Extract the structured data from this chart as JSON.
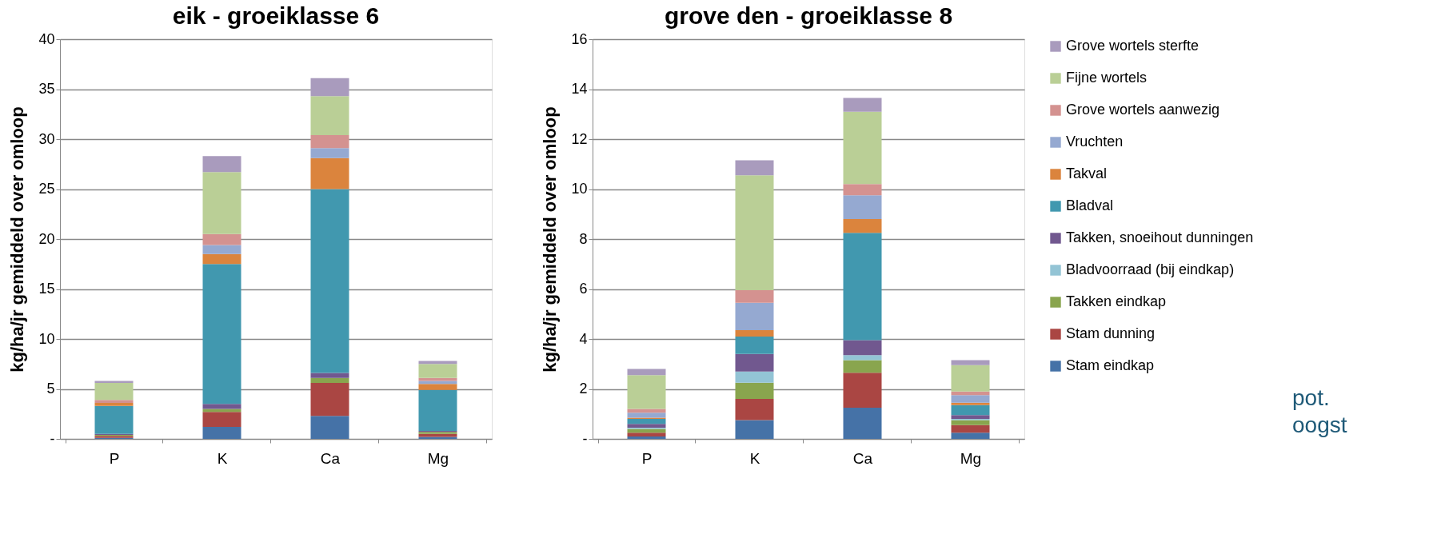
{
  "chart_data": [
    {
      "type": "bar",
      "title": "eik - groeiklasse 6",
      "ylabel": "kg/ha/jr   gemiddeld over omloop",
      "categories": [
        "P",
        "K",
        "Ca",
        "Mg"
      ],
      "stacked": true,
      "ylim": [
        0,
        40
      ],
      "yticks": [
        {
          "value": 0,
          "label": "-"
        },
        5,
        10,
        15,
        20,
        25,
        30,
        35,
        40
      ],
      "grid": "y",
      "series": [
        {
          "color": "#4572a7",
          "values": [
            0.1,
            1.2,
            2.3,
            0.2
          ]
        },
        {
          "color": "#aa4643",
          "values": [
            0.2,
            1.5,
            3.3,
            0.3
          ]
        },
        {
          "color": "#89a54e",
          "values": [
            0.1,
            0.3,
            0.5,
            0.2
          ]
        },
        {
          "color": "#93c4d5",
          "values": [
            0,
            0,
            0,
            0
          ]
        },
        {
          "color": "#71588f",
          "values": [
            0.1,
            0.5,
            0.5,
            0.1
          ]
        },
        {
          "color": "#4198af",
          "values": [
            2.8,
            14.0,
            18.4,
            4.1
          ]
        },
        {
          "color": "#db843d",
          "values": [
            0.3,
            1.0,
            3.1,
            0.6
          ]
        },
        {
          "color": "#95a9d1",
          "values": [
            0,
            0.9,
            1.0,
            0.3
          ]
        },
        {
          "color": "#d49290",
          "values": [
            0.3,
            1.1,
            1.3,
            0.3
          ]
        },
        {
          "color": "#bacf96",
          "values": [
            1.7,
            6.2,
            3.9,
            1.4
          ]
        },
        {
          "color": "#a99bbd",
          "values": [
            0.2,
            1.6,
            1.8,
            0.3
          ]
        }
      ]
    },
    {
      "type": "bar",
      "title": "grove den - groeiklasse 8",
      "ylabel": "kg/ha/jr   gemiddeld over omloop",
      "categories": [
        "P",
        "K",
        "Ca",
        "Mg"
      ],
      "stacked": true,
      "ylim": [
        0,
        16
      ],
      "yticks": [
        {
          "value": 0,
          "label": "-"
        },
        2,
        4,
        6,
        8,
        10,
        12,
        14,
        16
      ],
      "grid": "y",
      "legend": "right",
      "annotations": [
        "pot. oogst"
      ],
      "series": [
        {
          "name": "Stam eindkap",
          "color": "#4572a7",
          "values": [
            0.1,
            0.75,
            1.25,
            0.25
          ]
        },
        {
          "name": "Stam dunning",
          "color": "#aa4643",
          "values": [
            0.15,
            0.85,
            1.4,
            0.3
          ]
        },
        {
          "name": "Takken eindkap",
          "color": "#89a54e",
          "values": [
            0.15,
            0.65,
            0.5,
            0.2
          ]
        },
        {
          "name": "Bladvoorraad (bij eindkap)",
          "color": "#93c4d5",
          "values": [
            0.05,
            0.45,
            0.2,
            0.05
          ]
        },
        {
          "name": "Takken, snoeihout dunningen",
          "color": "#71588f",
          "values": [
            0.15,
            0.7,
            0.6,
            0.15
          ]
        },
        {
          "name": "Bladval",
          "color": "#4198af",
          "values": [
            0.2,
            0.7,
            4.3,
            0.4
          ]
        },
        {
          "name": "Takval",
          "color": "#db843d",
          "values": [
            0.05,
            0.25,
            0.55,
            0.1
          ]
        },
        {
          "name": "Vruchten",
          "color": "#95a9d1",
          "values": [
            0.2,
            1.1,
            0.95,
            0.3
          ]
        },
        {
          "name": "Grove wortels aanwezig",
          "color": "#d49290",
          "values": [
            0.15,
            0.5,
            0.45,
            0.15
          ]
        },
        {
          "name": "Fijne wortels",
          "color": "#bacf96",
          "values": [
            1.35,
            4.6,
            2.9,
            1.05
          ]
        },
        {
          "name": "Grove wortels sterfte",
          "color": "#a99bbd",
          "values": [
            0.25,
            0.6,
            0.55,
            0.2
          ]
        }
      ]
    }
  ]
}
